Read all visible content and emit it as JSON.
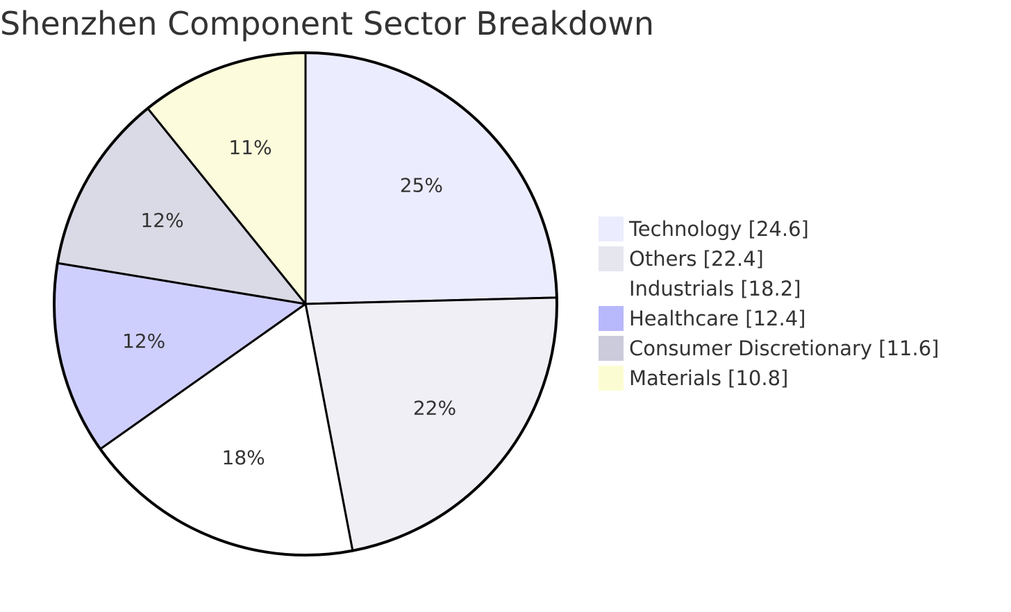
{
  "chart_data": {
    "type": "pie",
    "title": "Shenzhen Component Sector Breakdown",
    "slices": [
      {
        "name": "Technology",
        "value": 24.6,
        "label": "25%",
        "legend": "Technology [24.6]",
        "color": "#ececff"
      },
      {
        "name": "Others",
        "value": 22.4,
        "label": "22%",
        "legend": "Others [22.4]",
        "color": "#efeff5"
      },
      {
        "name": "Industrials",
        "value": 18.2,
        "label": "18%",
        "legend": "Industrials [18.2]",
        "color": "#ffffff"
      },
      {
        "name": "Healthcare",
        "value": 12.4,
        "label": "12%",
        "legend": "Healthcare [12.4]",
        "color": "#cfcffe"
      },
      {
        "name": "Consumer Discretionary",
        "value": 11.6,
        "label": "12%",
        "legend": "Consumer Discretionary [11.6]",
        "color": "#dadae6"
      },
      {
        "name": "Materials",
        "value": 10.8,
        "label": "11%",
        "legend": "Materials [10.8]",
        "color": "#fcfcdc"
      }
    ],
    "legend_swatch_colors": [
      "#ececff",
      "#e6e6ef",
      "#ffffff",
      "#b8b8fc",
      "#cbcbdc",
      "#fcfcd2"
    ],
    "legend_position": "right",
    "start_angle": "12 o'clock",
    "direction": "clockwise"
  }
}
